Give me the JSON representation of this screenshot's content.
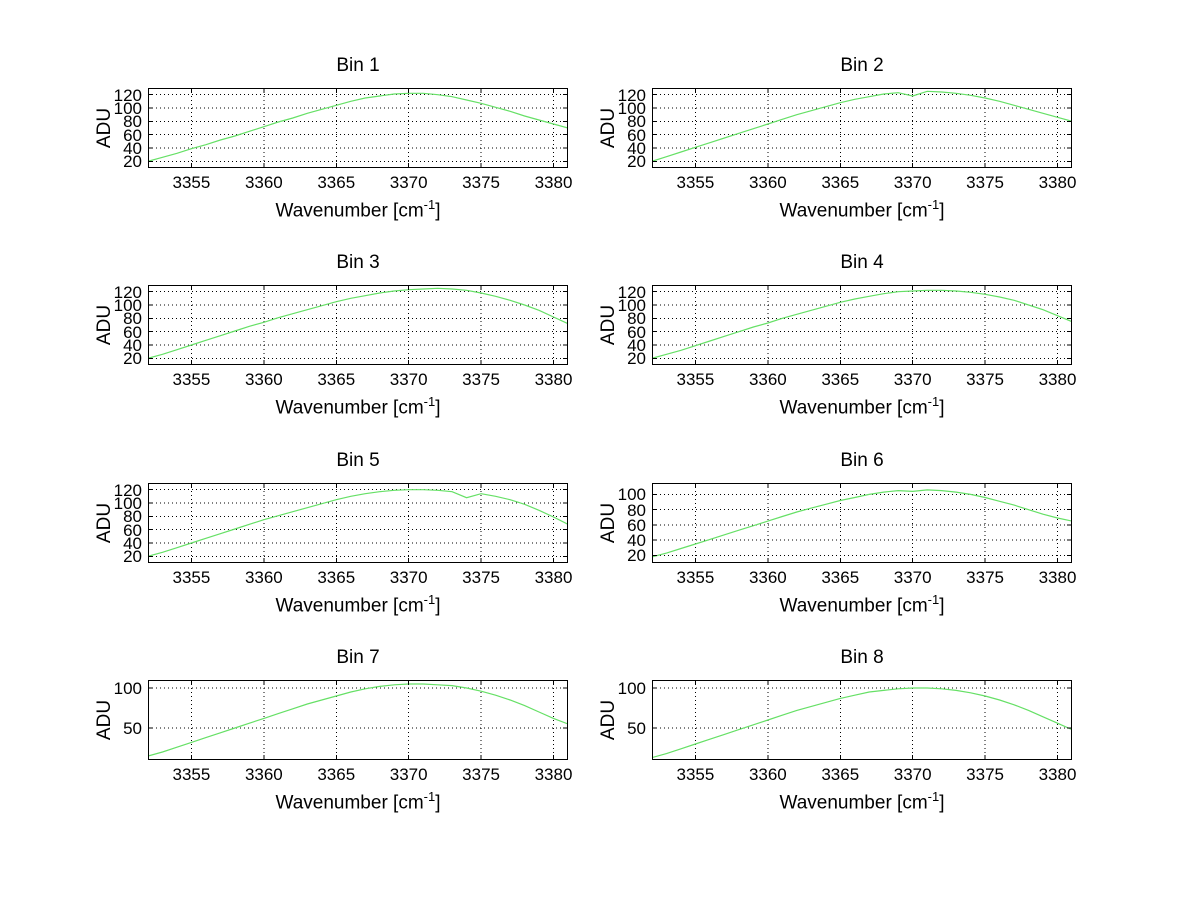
{
  "figure": {
    "background": "#ffffff",
    "line_color": "#66e066",
    "grid_color": "#000000",
    "axis_color": "#000000",
    "xlabel_base": "Wavenumber [cm",
    "xlabel_sup": "-1",
    "xlabel_close": "]"
  },
  "chart_data": [
    {
      "type": "line",
      "title": "Bin 1",
      "xlabel": "Wavenumber [cm^-1]",
      "ylabel": "ADU",
      "grid": true,
      "legend": false,
      "xlim": [
        3352,
        3381
      ],
      "ylim": [
        10,
        130
      ],
      "xticks": [
        3355,
        3360,
        3365,
        3370,
        3375,
        3380
      ],
      "yticks": [
        20,
        40,
        60,
        80,
        100,
        120
      ],
      "x": [
        3352,
        3353,
        3354,
        3355,
        3356,
        3357,
        3358,
        3359,
        3360,
        3361,
        3362,
        3363,
        3364,
        3365,
        3366,
        3367,
        3368,
        3369,
        3370,
        3371,
        3372,
        3373,
        3374,
        3375,
        3376,
        3377,
        3378,
        3379,
        3380,
        3381
      ],
      "values": [
        20,
        26,
        32,
        39,
        45,
        52,
        58,
        65,
        72,
        79,
        85,
        92,
        98,
        104,
        110,
        115,
        118,
        121,
        122,
        122,
        120,
        117,
        112,
        107,
        101,
        95,
        88,
        82,
        76,
        70
      ]
    },
    {
      "type": "line",
      "title": "Bin 2",
      "xlabel": "Wavenumber [cm^-1]",
      "ylabel": "ADU",
      "grid": true,
      "legend": false,
      "xlim": [
        3352,
        3381
      ],
      "ylim": [
        10,
        130
      ],
      "xticks": [
        3355,
        3360,
        3365,
        3370,
        3375,
        3380
      ],
      "yticks": [
        20,
        40,
        60,
        80,
        100,
        120
      ],
      "x": [
        3352,
        3353,
        3354,
        3355,
        3356,
        3357,
        3358,
        3359,
        3360,
        3361,
        3362,
        3363,
        3364,
        3365,
        3366,
        3367,
        3368,
        3369,
        3370,
        3371,
        3372,
        3373,
        3374,
        3375,
        3376,
        3377,
        3378,
        3379,
        3380,
        3381
      ],
      "values": [
        20,
        27,
        34,
        41,
        48,
        55,
        62,
        69,
        76,
        83,
        90,
        96,
        102,
        108,
        113,
        117,
        121,
        123,
        118,
        125,
        124,
        122,
        119,
        115,
        110,
        104,
        98,
        92,
        86,
        80
      ]
    },
    {
      "type": "line",
      "title": "Bin 3",
      "xlabel": "Wavenumber [cm^-1]",
      "ylabel": "ADU",
      "grid": true,
      "legend": false,
      "xlim": [
        3352,
        3381
      ],
      "ylim": [
        10,
        130
      ],
      "xticks": [
        3355,
        3360,
        3365,
        3370,
        3375,
        3380
      ],
      "yticks": [
        20,
        40,
        60,
        80,
        100,
        120
      ],
      "x": [
        3352,
        3353,
        3354,
        3355,
        3356,
        3357,
        3358,
        3359,
        3360,
        3361,
        3362,
        3363,
        3364,
        3365,
        3366,
        3367,
        3368,
        3369,
        3370,
        3371,
        3372,
        3373,
        3374,
        3375,
        3376,
        3377,
        3378,
        3379,
        3380,
        3381
      ],
      "values": [
        20,
        26,
        33,
        40,
        47,
        54,
        61,
        68,
        74,
        81,
        87,
        93,
        99,
        105,
        110,
        114,
        118,
        121,
        123,
        124,
        125,
        124,
        122,
        118,
        113,
        107,
        100,
        92,
        82,
        72
      ]
    },
    {
      "type": "line",
      "title": "Bin 4",
      "xlabel": "Wavenumber [cm^-1]",
      "ylabel": "ADU",
      "grid": true,
      "legend": false,
      "xlim": [
        3352,
        3381
      ],
      "ylim": [
        10,
        130
      ],
      "xticks": [
        3355,
        3360,
        3365,
        3370,
        3375,
        3380
      ],
      "yticks": [
        20,
        40,
        60,
        80,
        100,
        120
      ],
      "x": [
        3352,
        3353,
        3354,
        3355,
        3356,
        3357,
        3358,
        3359,
        3360,
        3361,
        3362,
        3363,
        3364,
        3365,
        3366,
        3367,
        3368,
        3369,
        3370,
        3371,
        3372,
        3373,
        3374,
        3375,
        3376,
        3377,
        3378,
        3379,
        3380,
        3381
      ],
      "values": [
        20,
        26,
        32,
        39,
        46,
        53,
        60,
        67,
        73,
        80,
        86,
        92,
        98,
        104,
        109,
        113,
        117,
        120,
        121,
        122,
        122,
        121,
        119,
        116,
        112,
        107,
        100,
        93,
        84,
        75
      ]
    },
    {
      "type": "line",
      "title": "Bin 5",
      "xlabel": "Wavenumber [cm^-1]",
      "ylabel": "ADU",
      "grid": true,
      "legend": false,
      "xlim": [
        3352,
        3381
      ],
      "ylim": [
        10,
        130
      ],
      "xticks": [
        3355,
        3360,
        3365,
        3370,
        3375,
        3380
      ],
      "yticks": [
        20,
        40,
        60,
        80,
        100,
        120
      ],
      "x": [
        3352,
        3353,
        3354,
        3355,
        3356,
        3357,
        3358,
        3359,
        3360,
        3361,
        3362,
        3363,
        3364,
        3365,
        3366,
        3367,
        3368,
        3369,
        3370,
        3371,
        3372,
        3373,
        3374,
        3375,
        3376,
        3377,
        3378,
        3379,
        3380,
        3381
      ],
      "values": [
        20,
        26,
        33,
        40,
        47,
        54,
        61,
        68,
        75,
        81,
        87,
        93,
        99,
        105,
        110,
        114,
        117,
        119,
        120,
        120,
        119,
        117,
        108,
        114,
        110,
        105,
        98,
        89,
        79,
        68
      ]
    },
    {
      "type": "line",
      "title": "Bin 6",
      "xlabel": "Wavenumber [cm^-1]",
      "ylabel": "ADU",
      "grid": true,
      "legend": false,
      "xlim": [
        3352,
        3381
      ],
      "ylim": [
        10,
        115
      ],
      "xticks": [
        3355,
        3360,
        3365,
        3370,
        3375,
        3380
      ],
      "yticks": [
        20,
        40,
        60,
        80,
        100
      ],
      "x": [
        3352,
        3353,
        3354,
        3355,
        3356,
        3357,
        3358,
        3359,
        3360,
        3361,
        3362,
        3363,
        3364,
        3365,
        3366,
        3367,
        3368,
        3369,
        3370,
        3371,
        3372,
        3373,
        3374,
        3375,
        3376,
        3377,
        3378,
        3379,
        3380,
        3381
      ],
      "values": [
        18,
        23,
        29,
        35,
        41,
        47,
        53,
        59,
        65,
        71,
        77,
        82,
        87,
        92,
        96,
        100,
        103,
        105,
        104,
        106,
        105,
        103,
        100,
        96,
        91,
        86,
        80,
        74,
        69,
        65
      ]
    },
    {
      "type": "line",
      "title": "Bin 7",
      "xlabel": "Wavenumber [cm^-1]",
      "ylabel": "ADU",
      "grid": true,
      "legend": false,
      "xlim": [
        3352,
        3381
      ],
      "ylim": [
        10,
        110
      ],
      "xticks": [
        3355,
        3360,
        3365,
        3370,
        3375,
        3380
      ],
      "yticks": [
        50,
        100
      ],
      "x": [
        3352,
        3353,
        3354,
        3355,
        3356,
        3357,
        3358,
        3359,
        3360,
        3361,
        3362,
        3363,
        3364,
        3365,
        3366,
        3367,
        3368,
        3369,
        3370,
        3371,
        3372,
        3373,
        3374,
        3375,
        3376,
        3377,
        3378,
        3379,
        3380,
        3381
      ],
      "values": [
        15,
        20,
        26,
        32,
        38,
        44,
        50,
        56,
        62,
        68,
        74,
        80,
        85,
        90,
        95,
        99,
        102,
        104,
        105,
        105,
        104,
        103,
        100,
        96,
        91,
        85,
        78,
        70,
        62,
        55
      ]
    },
    {
      "type": "line",
      "title": "Bin 8",
      "xlabel": "Wavenumber [cm^-1]",
      "ylabel": "ADU",
      "grid": true,
      "legend": false,
      "xlim": [
        3352,
        3381
      ],
      "ylim": [
        10,
        110
      ],
      "xticks": [
        3355,
        3360,
        3365,
        3370,
        3375,
        3380
      ],
      "yticks": [
        50,
        100
      ],
      "x": [
        3352,
        3353,
        3354,
        3355,
        3356,
        3357,
        3358,
        3359,
        3360,
        3361,
        3362,
        3363,
        3364,
        3365,
        3366,
        3367,
        3368,
        3369,
        3370,
        3371,
        3372,
        3373,
        3374,
        3375,
        3376,
        3377,
        3378,
        3379,
        3380,
        3381
      ],
      "values": [
        13,
        18,
        24,
        30,
        36,
        42,
        48,
        54,
        60,
        66,
        72,
        77,
        82,
        87,
        91,
        95,
        97,
        99,
        100,
        100,
        99,
        97,
        94,
        90,
        85,
        79,
        72,
        64,
        56,
        48
      ]
    }
  ]
}
